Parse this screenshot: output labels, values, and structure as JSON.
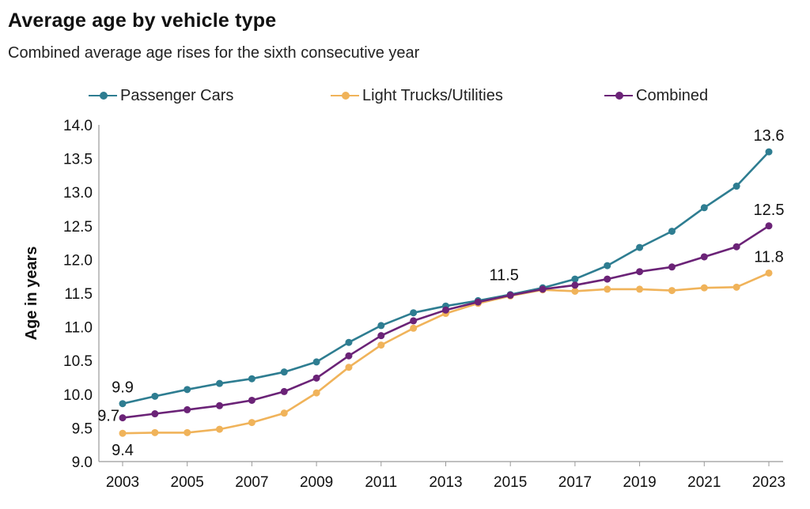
{
  "header": {
    "title": "Average age by vehicle type",
    "subtitle": "Combined average age rises for the sixth consecutive year"
  },
  "colors": {
    "passenger": "#2e7d91",
    "trucks": "#f0b35a",
    "combined": "#6b2377",
    "axis": "#9a9a9a",
    "text": "#111111"
  },
  "chart_data": {
    "type": "line",
    "xlabel": "",
    "ylabel": "Age in years",
    "ylim": [
      9.0,
      14.0
    ],
    "yticks": [
      "9.0",
      "9.5",
      "10.0",
      "10.5",
      "11.0",
      "11.5",
      "12.0",
      "12.5",
      "13.0",
      "13.5",
      "14.0"
    ],
    "xticks": [
      "2003",
      "2005",
      "2007",
      "2009",
      "2011",
      "2013",
      "2015",
      "2017",
      "2019",
      "2021",
      "2023"
    ],
    "grid": false,
    "legend": "top",
    "x": [
      2003,
      2004,
      2005,
      2006,
      2007,
      2008,
      2009,
      2010,
      2011,
      2012,
      2013,
      2014,
      2015,
      2016,
      2017,
      2018,
      2019,
      2020,
      2021,
      2022,
      2023
    ],
    "series": [
      {
        "name": "Passenger Cars",
        "color": "#2e7d91",
        "values": [
          9.86,
          9.97,
          10.07,
          10.16,
          10.23,
          10.33,
          10.48,
          10.77,
          11.02,
          11.21,
          11.31,
          11.39,
          11.48,
          11.58,
          11.71,
          11.91,
          12.18,
          12.42,
          12.77,
          13.09,
          13.6
        ]
      },
      {
        "name": "Light Trucks/Utilities",
        "color": "#f0b35a",
        "values": [
          9.42,
          9.43,
          9.43,
          9.48,
          9.58,
          9.72,
          10.02,
          10.4,
          10.73,
          10.98,
          11.2,
          11.35,
          11.46,
          11.55,
          11.53,
          11.56,
          11.56,
          11.54,
          11.58,
          11.59,
          11.8
        ]
      },
      {
        "name": "Combined",
        "color": "#6b2377",
        "values": [
          9.65,
          9.71,
          9.77,
          9.83,
          9.91,
          10.04,
          10.24,
          10.57,
          10.87,
          11.09,
          11.25,
          11.37,
          11.47,
          11.56,
          11.62,
          11.71,
          11.82,
          11.89,
          12.04,
          12.19,
          12.5
        ]
      }
    ],
    "annotations": [
      {
        "text": "9.9",
        "x": 2003,
        "y": 9.86,
        "pos": "above"
      },
      {
        "text": "9.7",
        "x": 2003,
        "y": 9.65,
        "pos": "left"
      },
      {
        "text": "9.4",
        "x": 2003,
        "y": 9.42,
        "pos": "below"
      },
      {
        "text": "11.5",
        "x": 2015,
        "y": 11.48,
        "pos": "above-left"
      },
      {
        "text": "13.6",
        "x": 2023,
        "y": 13.6,
        "pos": "above"
      },
      {
        "text": "12.5",
        "x": 2023,
        "y": 12.5,
        "pos": "above"
      },
      {
        "text": "11.8",
        "x": 2023,
        "y": 11.8,
        "pos": "above"
      }
    ]
  }
}
